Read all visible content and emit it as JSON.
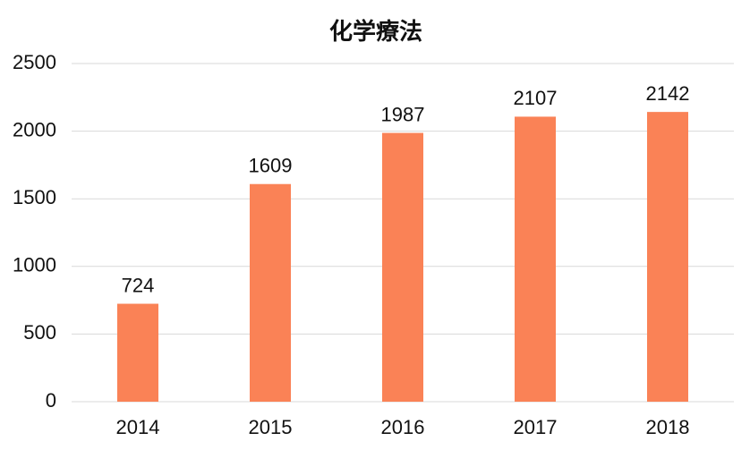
{
  "chart_data": {
    "type": "bar",
    "title": "化学療法",
    "categories": [
      "2014",
      "2015",
      "2016",
      "2017",
      "2018"
    ],
    "values": [
      724,
      1609,
      1987,
      2107,
      2142
    ],
    "color": "#fa8256",
    "ylim": [
      0,
      2500
    ],
    "yticks": [
      0,
      500,
      1000,
      1500,
      2000,
      2500
    ],
    "grid": true
  }
}
